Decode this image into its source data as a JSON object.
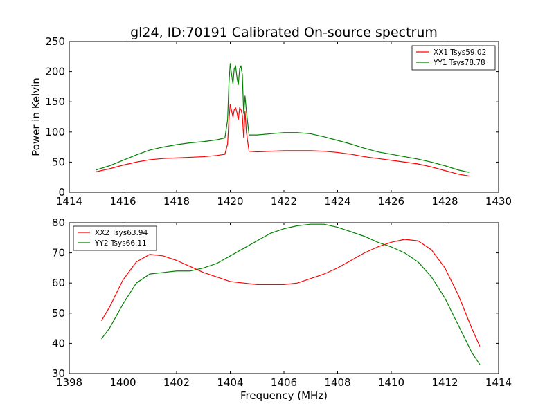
{
  "title": "gl24, ID:70191 Calibrated On-source spectrum",
  "chart_data": [
    {
      "type": "line",
      "ylabel": "Power in Kelvin",
      "xlabel": "",
      "xlim": [
        1414,
        1430
      ],
      "ylim": [
        0,
        250
      ],
      "xticks": [
        "1414",
        "1416",
        "1418",
        "1420",
        "1422",
        "1424",
        "1426",
        "1428",
        "1430"
      ],
      "yticks": [
        "0",
        "50",
        "100",
        "150",
        "200",
        "250"
      ],
      "legend_position": "top-right",
      "series": [
        {
          "name": "XX1 Tsys59.02",
          "color": "#ff0000",
          "points": [
            [
              1415.0,
              34
            ],
            [
              1415.5,
              39
            ],
            [
              1416.0,
              45
            ],
            [
              1416.5,
              50
            ],
            [
              1417.0,
              54
            ],
            [
              1417.5,
              56
            ],
            [
              1418.0,
              57
            ],
            [
              1418.5,
              58
            ],
            [
              1419.0,
              59
            ],
            [
              1419.5,
              61
            ],
            [
              1419.8,
              63
            ],
            [
              1419.9,
              80
            ],
            [
              1419.95,
              120
            ],
            [
              1420.0,
              146
            ],
            [
              1420.05,
              135
            ],
            [
              1420.1,
              125
            ],
            [
              1420.15,
              137
            ],
            [
              1420.2,
              140
            ],
            [
              1420.25,
              132
            ],
            [
              1420.3,
              120
            ],
            [
              1420.35,
              140
            ],
            [
              1420.4,
              137
            ],
            [
              1420.45,
              128
            ],
            [
              1420.5,
              90
            ],
            [
              1420.55,
              135
            ],
            [
              1420.6,
              100
            ],
            [
              1420.7,
              68
            ],
            [
              1421.0,
              67
            ],
            [
              1421.5,
              68
            ],
            [
              1422.0,
              69
            ],
            [
              1422.5,
              69
            ],
            [
              1423.0,
              69
            ],
            [
              1423.5,
              68
            ],
            [
              1424.0,
              66
            ],
            [
              1424.5,
              63
            ],
            [
              1425.0,
              59
            ],
            [
              1425.5,
              56
            ],
            [
              1426.0,
              53
            ],
            [
              1426.5,
              50
            ],
            [
              1427.0,
              47
            ],
            [
              1427.5,
              42
            ],
            [
              1428.0,
              36
            ],
            [
              1428.5,
              30
            ],
            [
              1428.9,
              27
            ]
          ]
        },
        {
          "name": "YY1 Tsys78.78",
          "color": "#008000",
          "points": [
            [
              1415.0,
              37
            ],
            [
              1415.5,
              44
            ],
            [
              1416.0,
              53
            ],
            [
              1416.5,
              62
            ],
            [
              1417.0,
              70
            ],
            [
              1417.5,
              75
            ],
            [
              1418.0,
              79
            ],
            [
              1418.5,
              82
            ],
            [
              1419.0,
              84
            ],
            [
              1419.5,
              87
            ],
            [
              1419.8,
              90
            ],
            [
              1419.9,
              120
            ],
            [
              1419.95,
              180
            ],
            [
              1420.0,
              214
            ],
            [
              1420.05,
              195
            ],
            [
              1420.1,
              180
            ],
            [
              1420.15,
              205
            ],
            [
              1420.2,
              209
            ],
            [
              1420.25,
              190
            ],
            [
              1420.3,
              178
            ],
            [
              1420.35,
              205
            ],
            [
              1420.4,
              209
            ],
            [
              1420.45,
              195
            ],
            [
              1420.5,
              130
            ],
            [
              1420.55,
              160
            ],
            [
              1420.6,
              135
            ],
            [
              1420.7,
              95
            ],
            [
              1421.0,
              95
            ],
            [
              1421.5,
              97
            ],
            [
              1422.0,
              99
            ],
            [
              1422.5,
              99
            ],
            [
              1423.0,
              97
            ],
            [
              1423.5,
              92
            ],
            [
              1424.0,
              86
            ],
            [
              1424.5,
              80
            ],
            [
              1425.0,
              73
            ],
            [
              1425.5,
              67
            ],
            [
              1426.0,
              63
            ],
            [
              1426.5,
              59
            ],
            [
              1427.0,
              55
            ],
            [
              1427.5,
              50
            ],
            [
              1428.0,
              44
            ],
            [
              1428.5,
              37
            ],
            [
              1428.9,
              33
            ]
          ]
        }
      ]
    },
    {
      "type": "line",
      "xlabel": "Frequency (MHz)",
      "ylabel": "",
      "xlim": [
        1398,
        1414
      ],
      "ylim": [
        30,
        80
      ],
      "xticks": [
        "1398",
        "1400",
        "1402",
        "1404",
        "1406",
        "1408",
        "1410",
        "1412",
        "1414"
      ],
      "yticks": [
        "30",
        "40",
        "50",
        "60",
        "70",
        "80"
      ],
      "legend_position": "top-left",
      "series": [
        {
          "name": "XX2 Tsys63.94",
          "color": "#ff0000",
          "points": [
            [
              1399.2,
              47.5
            ],
            [
              1399.5,
              52
            ],
            [
              1400.0,
              61
            ],
            [
              1400.5,
              67
            ],
            [
              1401.0,
              69.5
            ],
            [
              1401.5,
              69
            ],
            [
              1402.0,
              67.5
            ],
            [
              1402.5,
              65.5
            ],
            [
              1403.0,
              63.5
            ],
            [
              1403.5,
              62
            ],
            [
              1404.0,
              60.5
            ],
            [
              1404.5,
              60
            ],
            [
              1405.0,
              59.5
            ],
            [
              1405.5,
              59.5
            ],
            [
              1406.0,
              59.5
            ],
            [
              1406.5,
              60
            ],
            [
              1407.0,
              61.5
            ],
            [
              1407.5,
              63
            ],
            [
              1408.0,
              65
            ],
            [
              1408.5,
              67.5
            ],
            [
              1409.0,
              70
            ],
            [
              1409.5,
              72
            ],
            [
              1410.0,
              73.5
            ],
            [
              1410.5,
              74.5
            ],
            [
              1411.0,
              74
            ],
            [
              1411.5,
              71
            ],
            [
              1412.0,
              65
            ],
            [
              1412.5,
              56
            ],
            [
              1413.0,
              45
            ],
            [
              1413.3,
              39
            ]
          ]
        },
        {
          "name": "YY2 Tsys66.11",
          "color": "#008000",
          "points": [
            [
              1399.2,
              41.5
            ],
            [
              1399.5,
              45
            ],
            [
              1400.0,
              53
            ],
            [
              1400.5,
              60
            ],
            [
              1401.0,
              63
            ],
            [
              1401.5,
              63.5
            ],
            [
              1402.0,
              64
            ],
            [
              1402.5,
              64
            ],
            [
              1403.0,
              65
            ],
            [
              1403.5,
              66.5
            ],
            [
              1404.0,
              69
            ],
            [
              1404.5,
              71.5
            ],
            [
              1405.0,
              74
            ],
            [
              1405.5,
              76.5
            ],
            [
              1406.0,
              78
            ],
            [
              1406.5,
              79
            ],
            [
              1407.0,
              79.5
            ],
            [
              1407.5,
              79.5
            ],
            [
              1408.0,
              78.5
            ],
            [
              1408.5,
              77
            ],
            [
              1409.0,
              75.5
            ],
            [
              1409.5,
              73.5
            ],
            [
              1410.0,
              72
            ],
            [
              1410.5,
              70
            ],
            [
              1411.0,
              67
            ],
            [
              1411.5,
              62
            ],
            [
              1412.0,
              55
            ],
            [
              1412.5,
              46
            ],
            [
              1413.0,
              37
            ],
            [
              1413.3,
              33
            ]
          ]
        }
      ]
    }
  ]
}
